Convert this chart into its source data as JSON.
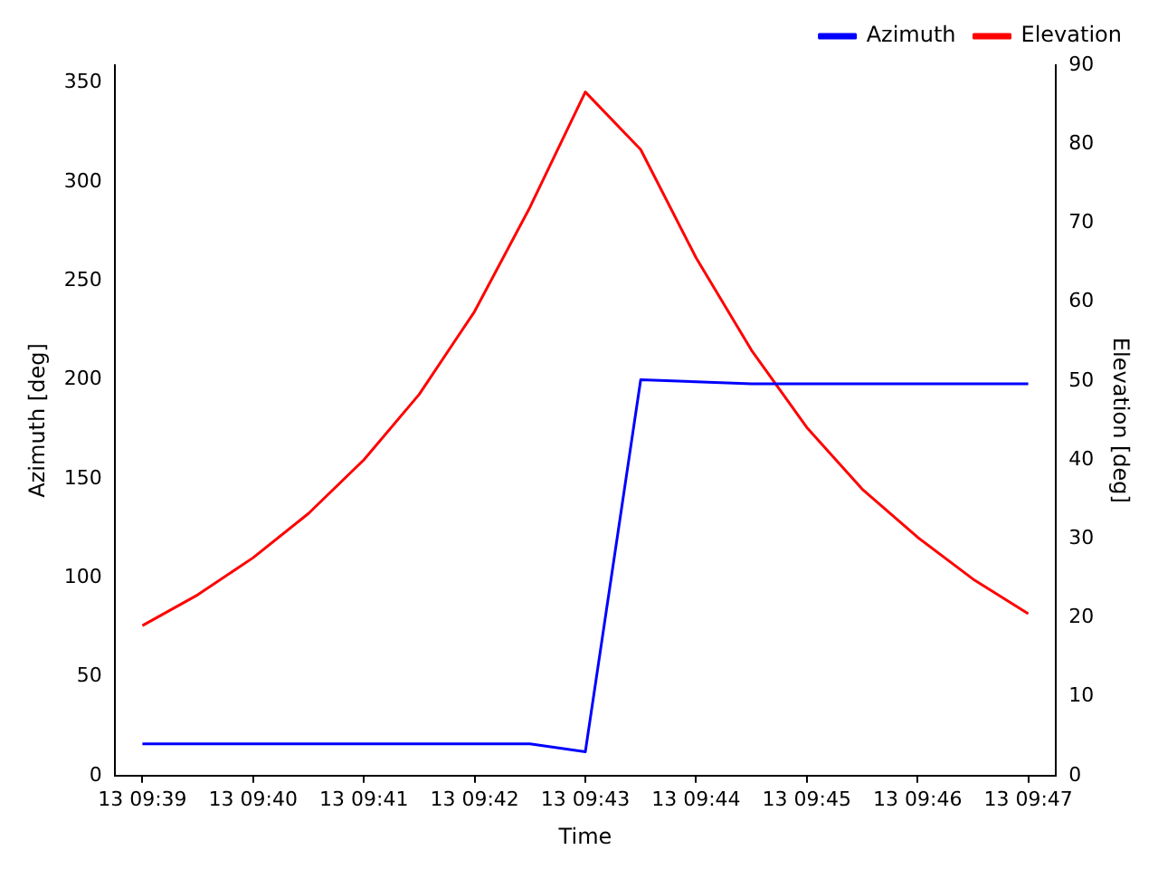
{
  "chart_data": {
    "type": "line",
    "xlabel": "Time",
    "ylabel": "Azimuth [deg]",
    "y2label": "Elevation [deg]",
    "categories": [
      "13 09:39",
      null,
      "13 09:40",
      null,
      "13 09:41",
      null,
      "13 09:42",
      null,
      "13 09:43",
      null,
      "13 09:44",
      null,
      "13 09:45",
      null,
      "13 09:46",
      null,
      "13 09:47"
    ],
    "series": [
      {
        "name": "Azimuth",
        "color": "#0000ff",
        "values": [
          16,
          16,
          16,
          16,
          16,
          16,
          16,
          16,
          12,
          200,
          199,
          198,
          198,
          198,
          198,
          198,
          198
        ]
      },
      {
        "name": "Elevation",
        "color": "#ff0000",
        "axis": "y2",
        "values": [
          19.0,
          22.9,
          27.6,
          33.2,
          40.0,
          48.3,
          58.8,
          72.0,
          86.6,
          79.3,
          65.6,
          53.9,
          44.1,
          36.3,
          30.2,
          24.9,
          20.5
        ]
      }
    ],
    "ylim": [
      0,
      359
    ],
    "yticks": [
      0,
      50,
      100,
      150,
      200,
      250,
      300,
      350
    ],
    "y2lim": [
      0,
      90
    ],
    "y2ticks": [
      0,
      10,
      20,
      30,
      40,
      50,
      60,
      70,
      80,
      90
    ],
    "legend": "top right",
    "grid": false
  }
}
